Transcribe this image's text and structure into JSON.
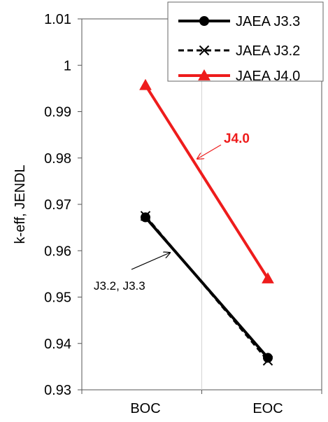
{
  "chart_data": {
    "type": "line",
    "title": "",
    "xlabel": "",
    "ylabel": "k-eff, JENDL",
    "categories": [
      "BOC",
      "EOC"
    ],
    "ylim": [
      0.93,
      1.01
    ],
    "y_ticks": [
      "0.93",
      "0.94",
      "0.95",
      "0.96",
      "0.97",
      "0.98",
      "0.99",
      "1",
      "1.01"
    ],
    "grid": "vertical-center-line",
    "legend_position": "top-right",
    "series": [
      {
        "name": "JAEA J3.3",
        "values": [
          0.9672,
          0.9369
        ],
        "color": "#000000",
        "marker": "circle",
        "dash": "solid"
      },
      {
        "name": "JAEA J3.2",
        "values": [
          0.9675,
          0.9363
        ],
        "color": "#000000",
        "marker": "x",
        "dash": "dashed"
      },
      {
        "name": "JAEA J4.0",
        "values": [
          0.9957,
          0.954
        ],
        "color": "#ee1c1c",
        "marker": "triangle",
        "dash": "solid"
      }
    ],
    "annotations": [
      {
        "text": "J4.0",
        "color": "#ee1c1c",
        "bold": true,
        "points_to": "JAEA J4.0"
      },
      {
        "text": "J3.2, J3.3",
        "color": "#000000",
        "bold": false,
        "points_to": "JAEA J3.3"
      }
    ]
  }
}
